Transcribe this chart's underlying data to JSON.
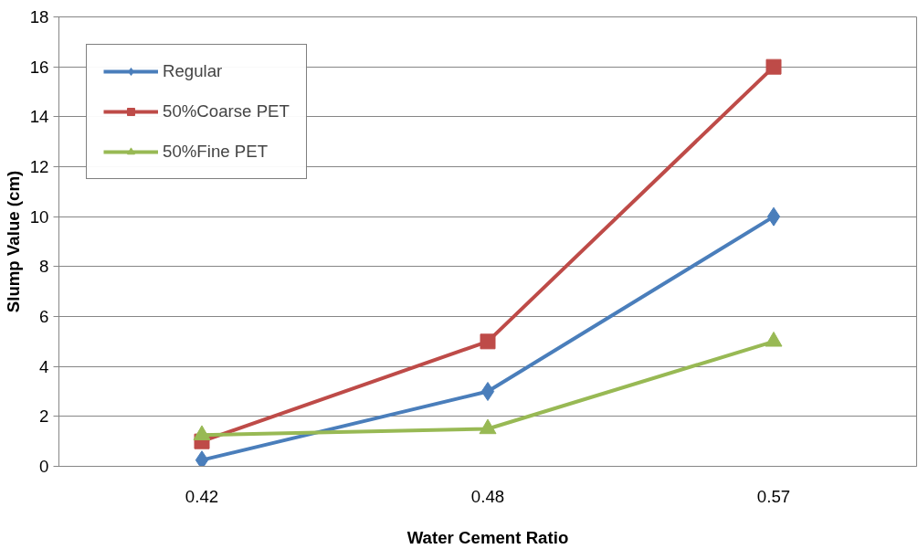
{
  "chart_data": {
    "type": "line",
    "xlabel": "Water Cement Ratio",
    "ylabel": "Slump Value (cm)",
    "categories": [
      "0.42",
      "0.48",
      "0.57"
    ],
    "series": [
      {
        "name": "Regular",
        "color": "#4a7ebb",
        "marker": "diamond",
        "values": [
          0.25,
          3,
          10
        ]
      },
      {
        "name": "50%Coarse PET",
        "color": "#be4b48",
        "marker": "square",
        "values": [
          1,
          5,
          16
        ]
      },
      {
        "name": "50%Fine PET",
        "color": "#98b954",
        "marker": "triangle",
        "values": [
          1.25,
          1.5,
          5
        ]
      }
    ],
    "ylim": [
      0,
      18
    ],
    "yticks": [
      0,
      2,
      4,
      6,
      8,
      10,
      12,
      14,
      16,
      18
    ],
    "grid": "y",
    "legend": "top left",
    "line_style": "solid"
  }
}
